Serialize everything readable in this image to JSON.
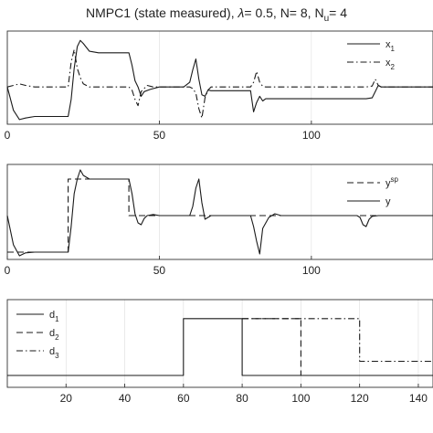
{
  "title": {
    "prefix": "NMPC1 (state measured), ",
    "lambda_symbol": "λ",
    "middle": "= 0.5, N= 8, N",
    "sub": "u",
    "suffix": "= 4"
  },
  "chart_data": [
    {
      "type": "line",
      "panel": "top",
      "xlim": [
        0,
        140
      ],
      "ylim": [
        -1.2,
        1.8
      ],
      "xticks": [
        0,
        50,
        100
      ],
      "grid": true,
      "legend_position": "top-right",
      "series": [
        {
          "name": "x",
          "sub": "1",
          "style": "solid",
          "x": [
            0,
            2,
            4,
            6,
            9,
            13,
            20,
            21,
            22,
            23,
            24,
            25,
            27,
            30,
            35,
            40,
            41,
            42,
            43,
            44,
            45,
            47,
            50,
            58,
            60,
            61,
            62,
            63,
            64,
            65,
            66,
            67,
            70,
            80,
            81,
            82,
            83,
            84,
            85,
            86,
            88,
            95,
            100,
            110,
            118,
            120,
            121,
            122,
            123,
            125,
            140
          ],
          "y": [
            0,
            -0.75,
            -1.05,
            -1.0,
            -0.95,
            -0.95,
            -0.95,
            -0.4,
            0.6,
            1.3,
            1.5,
            1.4,
            1.15,
            1.1,
            1.1,
            1.1,
            0.7,
            0.2,
            0,
            -0.3,
            -0.15,
            -0.08,
            0,
            0,
            0.15,
            0.55,
            0.9,
            0.25,
            -0.25,
            -0.3,
            -0.1,
            -0.12,
            -0.12,
            -0.12,
            -0.8,
            -0.5,
            -0.3,
            -0.45,
            -0.38,
            -0.38,
            -0.38,
            -0.38,
            -0.38,
            -0.38,
            -0.38,
            -0.35,
            -0.15,
            0.05,
            0,
            0,
            0
          ]
        },
        {
          "name": "x",
          "sub": "2",
          "style": "dashdot",
          "x": [
            0,
            2,
            4,
            6,
            9,
            13,
            20,
            21,
            22,
            23,
            24,
            25,
            27,
            30,
            35,
            40,
            41,
            42,
            43,
            44,
            45,
            46,
            48,
            50,
            60,
            61,
            62,
            63,
            64,
            65,
            66,
            67,
            70,
            80,
            81,
            82,
            83,
            84,
            85,
            86,
            88,
            90,
            100,
            110,
            118,
            120,
            121,
            122,
            123,
            125,
            140
          ],
          "y": [
            0,
            0.05,
            0.1,
            0.05,
            0,
            0,
            0,
            0.8,
            1.2,
            0.6,
            0.3,
            0.1,
            0,
            0,
            0,
            0,
            -0.1,
            -0.4,
            -0.6,
            -0.15,
            -0.05,
            0.05,
            0,
            0,
            0,
            -0.05,
            -0.2,
            -0.7,
            -1.0,
            -0.35,
            -0.1,
            0,
            0,
            0,
            0.15,
            0.5,
            0.15,
            0.02,
            0,
            0,
            0,
            0,
            0,
            0,
            0,
            0.03,
            0.25,
            0.05,
            0,
            0,
            0
          ]
        }
      ]
    },
    {
      "type": "line",
      "panel": "middle",
      "xlim": [
        0,
        140
      ],
      "ylim": [
        -1.2,
        1.4
      ],
      "xticks": [
        0,
        50,
        100
      ],
      "grid": true,
      "legend_position": "top-right",
      "series": [
        {
          "name": "y",
          "sup": "sp",
          "style": "dashed",
          "x": [
            0,
            20,
            20,
            40,
            40,
            140
          ],
          "y": [
            -1,
            -1,
            1,
            1,
            0,
            0
          ]
        },
        {
          "name": "y",
          "style": "solid",
          "x": [
            0,
            2,
            4,
            6,
            9,
            13,
            20,
            21,
            22,
            23,
            24,
            25,
            27,
            30,
            40,
            41,
            42,
            43,
            44,
            45,
            46,
            48,
            50,
            60,
            61,
            62,
            63,
            64,
            65,
            66,
            67,
            70,
            80,
            81,
            82,
            83,
            84,
            86,
            88,
            90,
            100,
            115,
            116,
            117,
            118,
            119,
            120,
            122,
            124,
            140
          ],
          "y": [
            0,
            -0.8,
            -1.1,
            -1.02,
            -1.0,
            -1.0,
            -1.0,
            -0.3,
            0.6,
            1.0,
            1.25,
            1.1,
            1.0,
            1.0,
            1.0,
            0.6,
            0.05,
            -0.2,
            -0.25,
            -0.08,
            0,
            0.03,
            0,
            0,
            0.25,
            0.75,
            1.0,
            0.35,
            -0.1,
            -0.05,
            0,
            0,
            0,
            -0.3,
            -0.7,
            -1.05,
            -0.35,
            -0.05,
            0.05,
            0,
            0,
            0,
            -0.05,
            -0.25,
            -0.3,
            -0.1,
            -0.02,
            0,
            0,
            0
          ]
        }
      ]
    },
    {
      "type": "line",
      "panel": "bottom",
      "xlim": [
        0,
        145
      ],
      "ylim": [
        -0.25,
        1.6
      ],
      "xticks": [
        20,
        40,
        60,
        80,
        100,
        120,
        140
      ],
      "grid": true,
      "legend_position": "top-left",
      "series": [
        {
          "name": "d",
          "sub": "1",
          "style": "solid",
          "x": [
            0,
            60,
            60,
            80,
            80,
            145
          ],
          "y": [
            0,
            0,
            1.2,
            1.2,
            0,
            0
          ]
        },
        {
          "name": "d",
          "sub": "2",
          "style": "dashed",
          "x": [
            80,
            100,
            100,
            145
          ],
          "y": [
            1.2,
            1.2,
            0,
            0
          ]
        },
        {
          "name": "d",
          "sub": "3",
          "style": "dashdot",
          "x": [
            80,
            120,
            120,
            145
          ],
          "y": [
            1.2,
            1.2,
            0.3,
            0.3
          ]
        }
      ]
    }
  ]
}
